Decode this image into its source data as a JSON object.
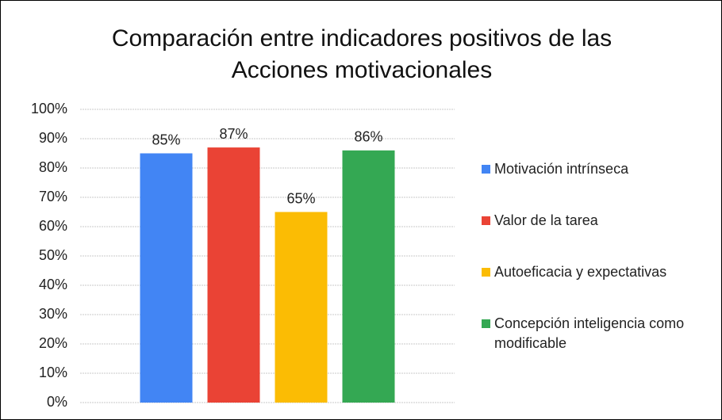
{
  "chart_data": {
    "type": "bar",
    "title": "Comparación entre indicadores positivos de las Acciones motivacionales",
    "categories": [
      null
    ],
    "series": [
      {
        "name": "Motivación intrínseca",
        "color": "#4285f4",
        "values": [
          85
        ],
        "value_labels": [
          "85%"
        ]
      },
      {
        "name": "Valor de la tarea",
        "color": "#ea4335",
        "values": [
          87
        ],
        "value_labels": [
          "87%"
        ]
      },
      {
        "name": "Autoeficacia y expectativas",
        "color": "#fbbc04",
        "values": [
          65
        ],
        "value_labels": [
          "65%"
        ]
      },
      {
        "name": "Concepción inteligencia como modificable",
        "color": "#34a853",
        "values": [
          86
        ],
        "value_labels": [
          "86%"
        ]
      }
    ],
    "ylim": [
      0,
      100
    ],
    "yticks": [
      {
        "value": 0,
        "label": "0%"
      },
      {
        "value": 10,
        "label": "10%"
      },
      {
        "value": 20,
        "label": "20%"
      },
      {
        "value": 30,
        "label": "30%"
      },
      {
        "value": 40,
        "label": "40%"
      },
      {
        "value": 50,
        "label": "50%"
      },
      {
        "value": 60,
        "label": "60%"
      },
      {
        "value": 70,
        "label": "70%"
      },
      {
        "value": 80,
        "label": "80%"
      },
      {
        "value": 90,
        "label": "90%"
      },
      {
        "value": 100,
        "label": "100%"
      }
    ],
    "grid": true,
    "legend": "right"
  }
}
